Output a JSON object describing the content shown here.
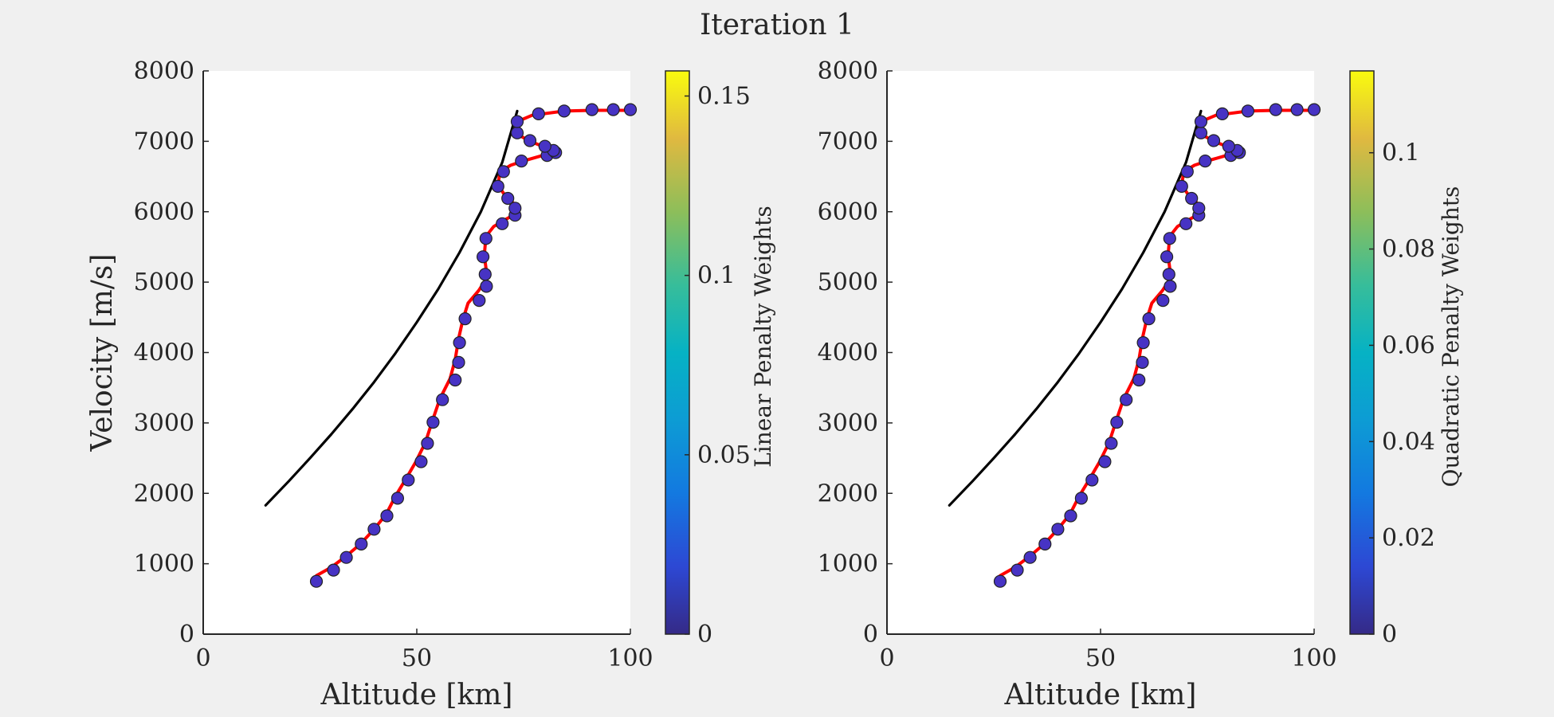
{
  "figure": {
    "title": "Iteration 1",
    "background": "#f0f0f0"
  },
  "chart_data": [
    {
      "type": "line",
      "title": "",
      "xlabel": "Altitude [km]",
      "ylabel": "Velocity [m/s]",
      "xlim": [
        0,
        100
      ],
      "ylim": [
        0,
        8000
      ],
      "xticks": [
        "0",
        "50",
        "100"
      ],
      "yticks": [
        "0",
        "1000",
        "2000",
        "3000",
        "4000",
        "5000",
        "6000",
        "7000",
        "8000"
      ],
      "grid": false,
      "colorbar": {
        "label": "Linear Penalty Weights",
        "range": [
          0,
          0.157
        ],
        "ticks": [
          {
            "value": 0,
            "label": "0"
          },
          {
            "value": 0.05,
            "label": "0.05"
          },
          {
            "value": 0.1,
            "label": "0.1"
          },
          {
            "value": 0.15,
            "label": "0.15"
          }
        ],
        "colormap": "parula"
      },
      "series": [
        {
          "kind": "reference-curve",
          "color": "#000000",
          "points": [
            [
              14.6,
              1830
            ],
            [
              20,
              2170
            ],
            [
              25,
              2500
            ],
            [
              30,
              2840
            ],
            [
              35,
              3200
            ],
            [
              40,
              3580
            ],
            [
              45,
              3990
            ],
            [
              50,
              4430
            ],
            [
              55,
              4900
            ],
            [
              60,
              5420
            ],
            [
              65,
              6000
            ],
            [
              70,
              6700
            ],
            [
              73.5,
              7430
            ]
          ]
        },
        {
          "kind": "trajectory",
          "color": "#ff0000",
          "points": [
            [
              26.5,
              830
            ],
            [
              30,
              950
            ],
            [
              33.5,
              1110
            ],
            [
              36.8,
              1280
            ],
            [
              40,
              1490
            ],
            [
              42.8,
              1700
            ],
            [
              45,
              1960
            ],
            [
              47.5,
              2210
            ],
            [
              49.8,
              2450
            ],
            [
              52,
              2720
            ],
            [
              53.6,
              3020
            ],
            [
              55.4,
              3340
            ],
            [
              57.8,
              3630
            ],
            [
              59,
              3900
            ],
            [
              59.8,
              4200
            ],
            [
              60.8,
              4470
            ],
            [
              62,
              4700
            ],
            [
              64.5,
              4880
            ],
            [
              66,
              5020
            ],
            [
              66.2,
              5200
            ],
            [
              65.8,
              5380
            ],
            [
              66.2,
              5650
            ],
            [
              68,
              5790
            ],
            [
              70.5,
              5880
            ],
            [
              72.5,
              5950
            ],
            [
              73,
              6050
            ],
            [
              72.5,
              6130
            ],
            [
              71,
              6200
            ],
            [
              69,
              6380
            ],
            [
              69.5,
              6570
            ],
            [
              72,
              6660
            ],
            [
              75.5,
              6730
            ],
            [
              79.5,
              6800
            ],
            [
              82.5,
              6830
            ],
            [
              82,
              6880
            ],
            [
              79.5,
              6930
            ],
            [
              76.5,
              7000
            ],
            [
              73,
              7120
            ],
            [
              73.5,
              7280
            ],
            [
              77,
              7370
            ],
            [
              84.5,
              7430
            ],
            [
              91,
              7440
            ],
            [
              95.5,
              7440
            ],
            [
              100,
              7440
            ]
          ]
        },
        {
          "kind": "penalty-points",
          "marker_color": "#4733c4",
          "weights": "all 0",
          "points": [
            [
              26.5,
              750
            ],
            [
              30.5,
              910
            ],
            [
              33.5,
              1090
            ],
            [
              37,
              1280
            ],
            [
              40,
              1490
            ],
            [
              43,
              1680
            ],
            [
              45.5,
              1930
            ],
            [
              48,
              2190
            ],
            [
              51,
              2450
            ],
            [
              52.5,
              2710
            ],
            [
              53.8,
              3010
            ],
            [
              56,
              3330
            ],
            [
              59,
              3610
            ],
            [
              59.8,
              3860
            ],
            [
              60,
              4140
            ],
            [
              61.3,
              4480
            ],
            [
              64.6,
              4740
            ],
            [
              66.3,
              4940
            ],
            [
              66,
              5110
            ],
            [
              65.5,
              5360
            ],
            [
              66.2,
              5620
            ],
            [
              70,
              5830
            ],
            [
              73,
              5950
            ],
            [
              73,
              6050
            ],
            [
              71.3,
              6190
            ],
            [
              69,
              6360
            ],
            [
              70.3,
              6570
            ],
            [
              74.5,
              6720
            ],
            [
              80.5,
              6800
            ],
            [
              82.5,
              6840
            ],
            [
              82,
              6870
            ],
            [
              80,
              6930
            ],
            [
              76.5,
              7010
            ],
            [
              73.5,
              7120
            ],
            [
              73.5,
              7280
            ],
            [
              78.5,
              7390
            ],
            [
              84.5,
              7430
            ],
            [
              91,
              7450
            ],
            [
              96,
              7450
            ],
            [
              100,
              7450
            ]
          ]
        }
      ]
    },
    {
      "type": "line",
      "title": "",
      "xlabel": "Altitude [km]",
      "ylabel": "",
      "xlim": [
        0,
        100
      ],
      "ylim": [
        0,
        8000
      ],
      "xticks": [
        "0",
        "50",
        "100"
      ],
      "yticks": [
        "0",
        "1000",
        "2000",
        "3000",
        "4000",
        "5000",
        "6000",
        "7000",
        "8000"
      ],
      "grid": false,
      "colorbar": {
        "label": "Quadratic Penalty Weights",
        "range": [
          0,
          0.117
        ],
        "ticks": [
          {
            "value": 0,
            "label": "0"
          },
          {
            "value": 0.02,
            "label": "0.02"
          },
          {
            "value": 0.04,
            "label": "0.04"
          },
          {
            "value": 0.06,
            "label": "0.06"
          },
          {
            "value": 0.08,
            "label": "0.08"
          },
          {
            "value": 0.1,
            "label": "0.1"
          }
        ],
        "colormap": "parula"
      },
      "series": [
        {
          "kind": "reference-curve",
          "color": "#000000",
          "points": [
            [
              14.6,
              1830
            ],
            [
              20,
              2170
            ],
            [
              25,
              2500
            ],
            [
              30,
              2840
            ],
            [
              35,
              3200
            ],
            [
              40,
              3580
            ],
            [
              45,
              3990
            ],
            [
              50,
              4430
            ],
            [
              55,
              4900
            ],
            [
              60,
              5420
            ],
            [
              65,
              6000
            ],
            [
              70,
              6700
            ],
            [
              73.5,
              7430
            ]
          ]
        },
        {
          "kind": "trajectory",
          "color": "#ff0000",
          "points": [
            [
              26.5,
              830
            ],
            [
              30,
              950
            ],
            [
              33.5,
              1110
            ],
            [
              36.8,
              1280
            ],
            [
              40,
              1490
            ],
            [
              42.8,
              1700
            ],
            [
              45,
              1960
            ],
            [
              47.5,
              2210
            ],
            [
              49.8,
              2450
            ],
            [
              52,
              2720
            ],
            [
              53.6,
              3020
            ],
            [
              55.4,
              3340
            ],
            [
              57.8,
              3630
            ],
            [
              59,
              3900
            ],
            [
              59.8,
              4200
            ],
            [
              60.8,
              4470
            ],
            [
              62,
              4700
            ],
            [
              64.5,
              4880
            ],
            [
              66,
              5020
            ],
            [
              66.2,
              5200
            ],
            [
              65.8,
              5380
            ],
            [
              66.2,
              5650
            ],
            [
              68,
              5790
            ],
            [
              70.5,
              5880
            ],
            [
              72.5,
              5950
            ],
            [
              73,
              6050
            ],
            [
              72.5,
              6130
            ],
            [
              71,
              6200
            ],
            [
              69,
              6380
            ],
            [
              69.5,
              6570
            ],
            [
              72,
              6660
            ],
            [
              75.5,
              6730
            ],
            [
              79.5,
              6800
            ],
            [
              82.5,
              6830
            ],
            [
              82,
              6880
            ],
            [
              79.5,
              6930
            ],
            [
              76.5,
              7000
            ],
            [
              73,
              7120
            ],
            [
              73.5,
              7280
            ],
            [
              77,
              7370
            ],
            [
              84.5,
              7430
            ],
            [
              91,
              7440
            ],
            [
              95.5,
              7440
            ],
            [
              100,
              7440
            ]
          ]
        },
        {
          "kind": "penalty-points",
          "marker_color": "#4733c4",
          "weights": "all 0",
          "points": [
            [
              26.5,
              750
            ],
            [
              30.5,
              910
            ],
            [
              33.5,
              1090
            ],
            [
              37,
              1280
            ],
            [
              40,
              1490
            ],
            [
              43,
              1680
            ],
            [
              45.5,
              1930
            ],
            [
              48,
              2190
            ],
            [
              51,
              2450
            ],
            [
              52.5,
              2710
            ],
            [
              53.8,
              3010
            ],
            [
              56,
              3330
            ],
            [
              59,
              3610
            ],
            [
              59.8,
              3860
            ],
            [
              60,
              4140
            ],
            [
              61.3,
              4480
            ],
            [
              64.6,
              4740
            ],
            [
              66.3,
              4940
            ],
            [
              66,
              5110
            ],
            [
              65.5,
              5360
            ],
            [
              66.2,
              5620
            ],
            [
              70,
              5830
            ],
            [
              73,
              5950
            ],
            [
              73,
              6050
            ],
            [
              71.3,
              6190
            ],
            [
              69,
              6360
            ],
            [
              70.3,
              6570
            ],
            [
              74.5,
              6720
            ],
            [
              80.5,
              6800
            ],
            [
              82.5,
              6840
            ],
            [
              82,
              6870
            ],
            [
              80,
              6930
            ],
            [
              76.5,
              7010
            ],
            [
              73.5,
              7120
            ],
            [
              73.5,
              7280
            ],
            [
              78.5,
              7390
            ],
            [
              84.5,
              7430
            ],
            [
              91,
              7450
            ],
            [
              96,
              7450
            ],
            [
              100,
              7450
            ]
          ]
        }
      ]
    }
  ]
}
